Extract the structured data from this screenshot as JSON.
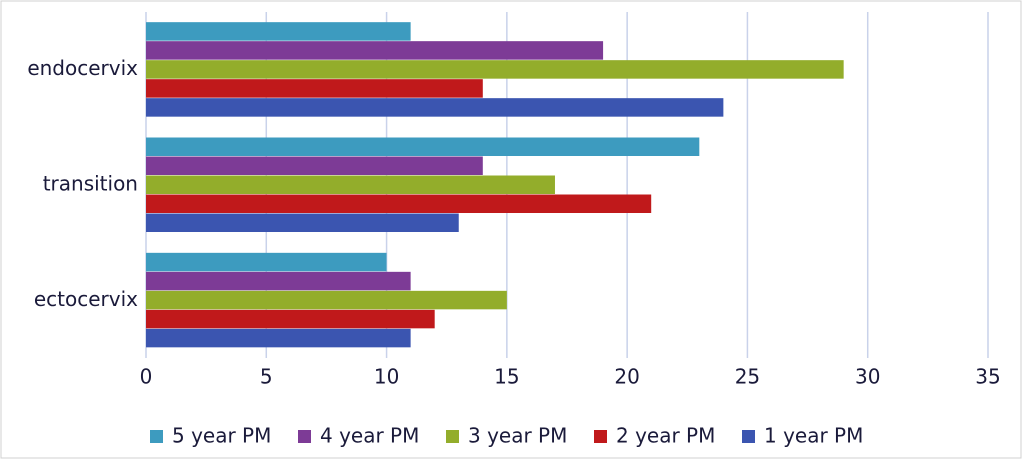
{
  "chart_data": {
    "type": "hbar",
    "categories": [
      "ectocervix",
      "transition",
      "endocervix"
    ],
    "series": [
      {
        "name": "5 year PM",
        "color": "#3d9bbf",
        "values": [
          10,
          23,
          11
        ]
      },
      {
        "name": "4 year PM",
        "color": "#7d3b96",
        "values": [
          11,
          14,
          19
        ]
      },
      {
        "name": "3 year PM",
        "color": "#93ad2b",
        "values": [
          15,
          17,
          29
        ]
      },
      {
        "name": "2 year PM",
        "color": "#c0191b",
        "values": [
          12,
          21,
          14
        ]
      },
      {
        "name": "1 year PM",
        "color": "#3b55b0",
        "values": [
          11,
          13,
          24
        ]
      }
    ],
    "xlim": [
      0,
      35
    ],
    "xticks": [
      0,
      5,
      10,
      15,
      20,
      25,
      30,
      35
    ],
    "grid": true,
    "legend": "bottom"
  }
}
